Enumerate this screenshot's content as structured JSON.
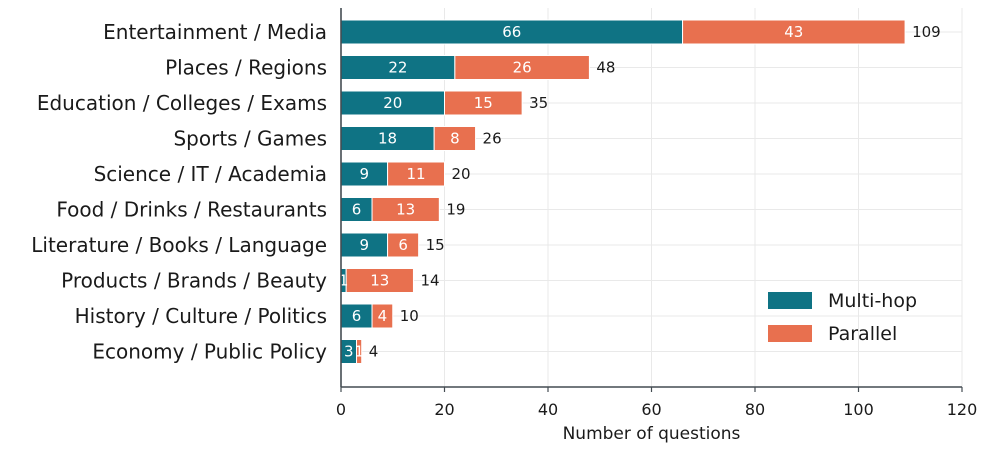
{
  "chart_data": {
    "type": "bar",
    "orientation": "horizontal",
    "stacked": true,
    "categories": [
      "Entertainment / Media",
      "Places / Regions",
      "Education / Colleges / Exams",
      "Sports / Games",
      "Science / IT / Academia",
      "Food / Drinks / Restaurants",
      "Literature / Books / Language",
      "Products / Brands / Beauty",
      "History / Culture / Politics",
      "Economy / Public Policy"
    ],
    "series": [
      {
        "name": "Multi-hop",
        "color": "#0f7384",
        "values": [
          66,
          22,
          20,
          18,
          9,
          6,
          9,
          1,
          6,
          3
        ]
      },
      {
        "name": "Parallel",
        "color": "#e8704f",
        "values": [
          43,
          26,
          15,
          8,
          11,
          13,
          6,
          13,
          4,
          1
        ]
      }
    ],
    "totals": [
      109,
      48,
      35,
      26,
      20,
      19,
      15,
      14,
      10,
      4
    ],
    "xlabel": "Number of questions",
    "ylabel": "",
    "xlim": [
      0,
      120
    ],
    "xticks": [
      0,
      20,
      40,
      60,
      80,
      100,
      120
    ],
    "grid": true,
    "legend": {
      "position": "bottom-right",
      "entries": [
        "Multi-hop",
        "Parallel"
      ]
    }
  }
}
